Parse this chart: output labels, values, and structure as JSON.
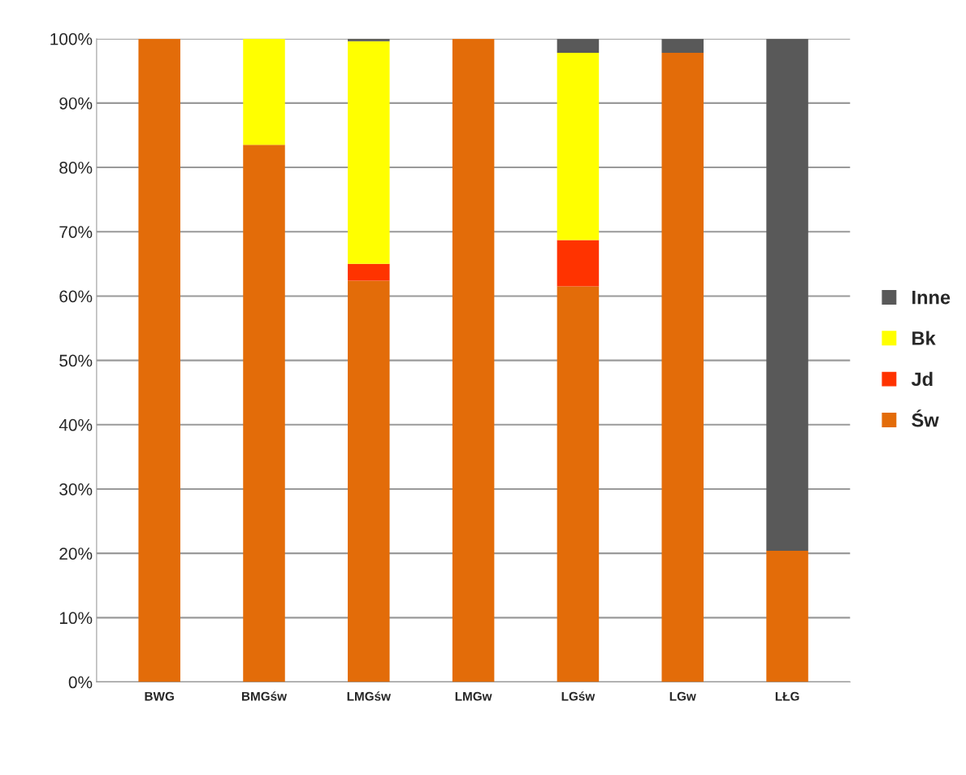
{
  "chart_data": {
    "type": "bar",
    "stacked": true,
    "categories": [
      "BWG",
      "BMGśw",
      "LMGśw",
      "LMGw",
      "LGśw",
      "LGw",
      "LŁG"
    ],
    "series": [
      {
        "name": "Św",
        "color": "#e36c09",
        "values": [
          100,
          83.5,
          62.4,
          100,
          61.5,
          97.8,
          20.4
        ]
      },
      {
        "name": "Jd",
        "color": "#ff3300",
        "values": [
          0,
          0,
          2.6,
          0,
          7.2,
          0,
          0
        ]
      },
      {
        "name": "Bk",
        "color": "#ffff00",
        "values": [
          0,
          16.5,
          34.6,
          0,
          29.1,
          0,
          0
        ]
      },
      {
        "name": "Inne",
        "color": "#595959",
        "values": [
          0,
          0,
          0.4,
          0,
          2.2,
          2.2,
          79.6
        ]
      }
    ],
    "ylim": [
      0,
      100
    ],
    "yticks": [
      {
        "value": 0,
        "label": "0%"
      },
      {
        "value": 10,
        "label": "10%"
      },
      {
        "value": 20,
        "label": "20%"
      },
      {
        "value": 30,
        "label": "30%"
      },
      {
        "value": 40,
        "label": "40%"
      },
      {
        "value": 50,
        "label": "50%"
      },
      {
        "value": 60,
        "label": "60%"
      },
      {
        "value": 70,
        "label": "70%"
      },
      {
        "value": 80,
        "label": "80%"
      },
      {
        "value": 90,
        "label": "90%"
      },
      {
        "value": 100,
        "label": "100%"
      }
    ],
    "grid": "y",
    "legend": "right"
  }
}
